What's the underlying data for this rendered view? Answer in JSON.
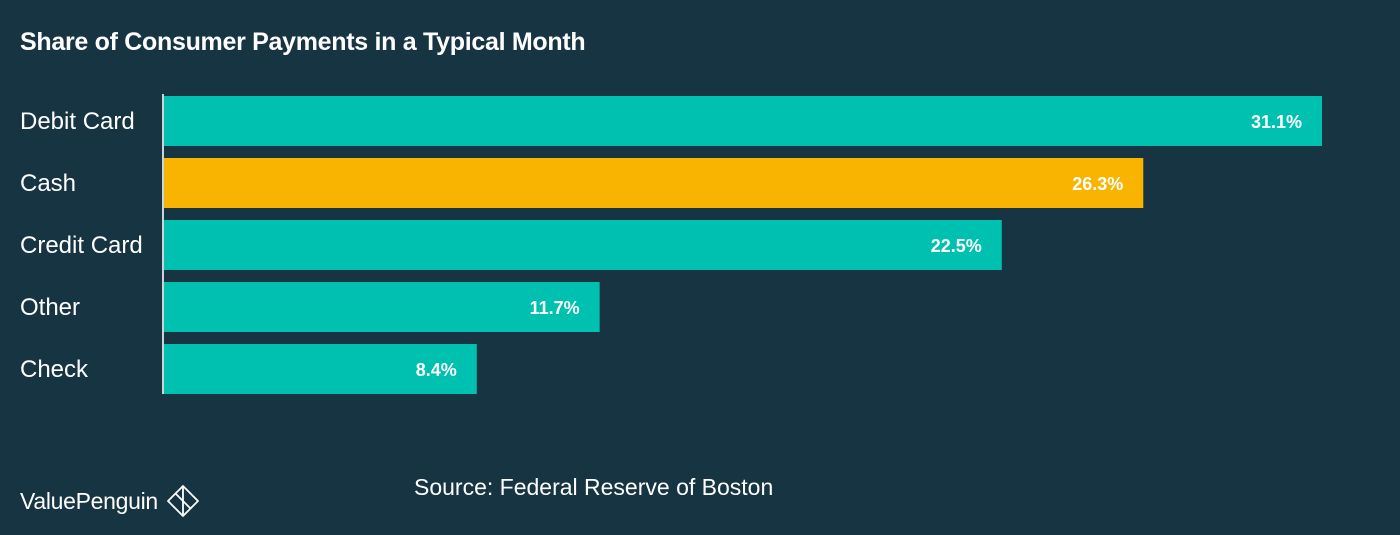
{
  "chart_data": {
    "type": "bar",
    "orientation": "horizontal",
    "title": "Share of Consumer Payments in a Typical Month",
    "categories": [
      "Debit Card",
      "Cash",
      "Credit Card",
      "Other",
      "Check"
    ],
    "values": [
      31.1,
      26.3,
      22.5,
      11.7,
      8.4
    ],
    "value_labels": [
      "31.1%",
      "26.3%",
      "22.5%",
      "11.7%",
      "8.4%"
    ],
    "highlight_category": "Cash",
    "xlim": [
      0,
      31.1
    ],
    "grid": false,
    "legend": "none"
  },
  "colors": {
    "background": "#173443",
    "bar": "#00c1b0",
    "highlight": "#f8b400",
    "axis": "#c9d3d8",
    "text": "#ffffff"
  },
  "footer": {
    "brand_name": "ValuePenguin",
    "brand_icon": "valuepenguin-logo-icon",
    "source": "Source: Federal Reserve of Boston"
  }
}
